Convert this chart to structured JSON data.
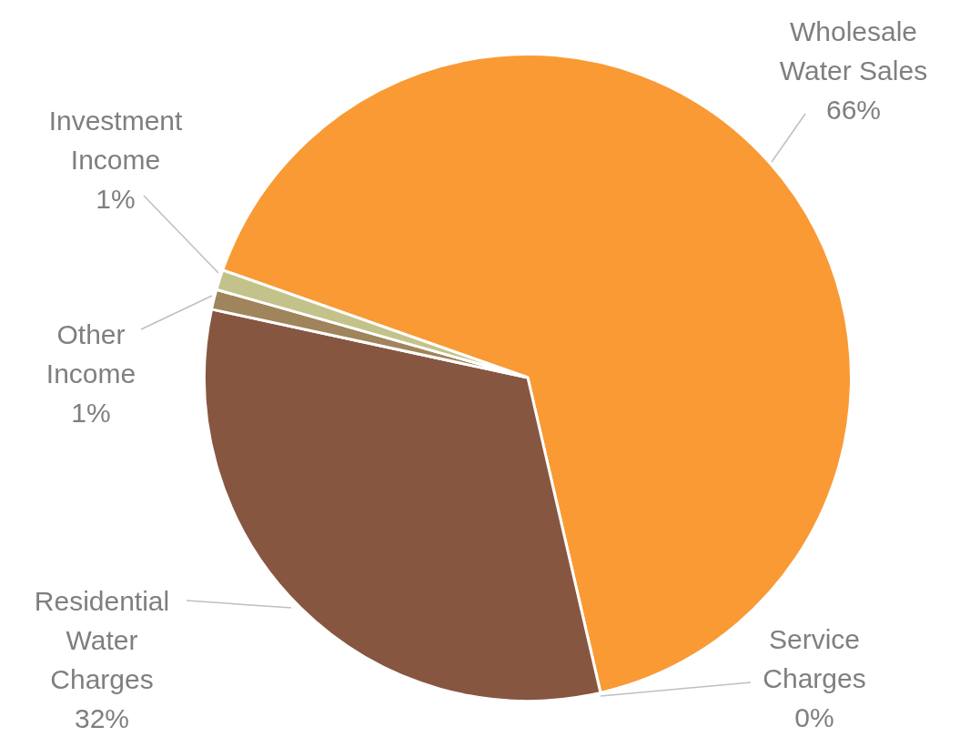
{
  "chart_data": {
    "type": "pie",
    "categories": [
      "Wholesale Water Sales",
      "Service Charges",
      "Residential Water Charges",
      "Other Income",
      "Investment Income"
    ],
    "values": [
      66,
      0,
      32,
      1,
      1
    ],
    "value_labels": [
      "66%",
      "0%",
      "32%",
      "1%",
      "1%"
    ],
    "colors": [
      "#f99a35",
      "#c2b484",
      "#875641",
      "#a0845b",
      "#c3c28a"
    ],
    "legend": false
  }
}
